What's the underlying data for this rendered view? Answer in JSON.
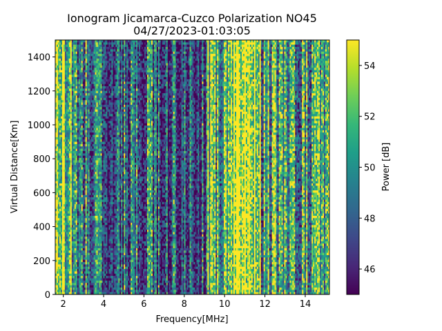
{
  "figure": {
    "title_line1": "Ionogram Jicamarca-Cuzco Polarization NO45",
    "title_line2": "04/27/2023-01:03:05"
  },
  "chart_data": {
    "type": "heatmap",
    "title": "Ionogram Jicamarca-Cuzco Polarization NO45",
    "subtitle": "04/27/2023-01:03:05",
    "xlabel": "Frequency[MHz]",
    "ylabel": "Virtual Distance[Km]",
    "xlim": [
      1.6,
      15.2
    ],
    "ylim": [
      0,
      1500
    ],
    "x_ticks": [
      2,
      4,
      6,
      8,
      10,
      12,
      14
    ],
    "y_ticks": [
      0,
      200,
      400,
      600,
      800,
      1000,
      1200,
      1400
    ],
    "colorbar": {
      "label": "Power [dB]",
      "range": [
        45,
        55
      ],
      "ticks": [
        46,
        48,
        50,
        52,
        54
      ],
      "colormap": "viridis"
    },
    "grid": false,
    "colormap_stops": [
      "#440154",
      "#482878",
      "#3e4989",
      "#31688e",
      "#26828e",
      "#1f9e89",
      "#35b779",
      "#6ece58",
      "#b5de2b",
      "#fde725"
    ],
    "column_intensity_profile": {
      "description_units": "mean power level (0 = 45 dB, 1 = 55 dB) per frequency band",
      "bands": [
        {
          "from": 1.6,
          "to": 2.4,
          "level": 0.75
        },
        {
          "from": 2.4,
          "to": 3.5,
          "level": 0.45
        },
        {
          "from": 3.5,
          "to": 6.5,
          "level": 0.35
        },
        {
          "from": 6.5,
          "to": 9.1,
          "level": 0.3
        },
        {
          "from": 9.1,
          "to": 10.3,
          "level": 0.6
        },
        {
          "from": 10.3,
          "to": 11.8,
          "level": 0.95
        },
        {
          "from": 11.8,
          "to": 12.6,
          "level": 0.55
        },
        {
          "from": 12.6,
          "to": 13.5,
          "level": 0.5
        },
        {
          "from": 13.5,
          "to": 15.2,
          "level": 0.55
        }
      ]
    }
  }
}
